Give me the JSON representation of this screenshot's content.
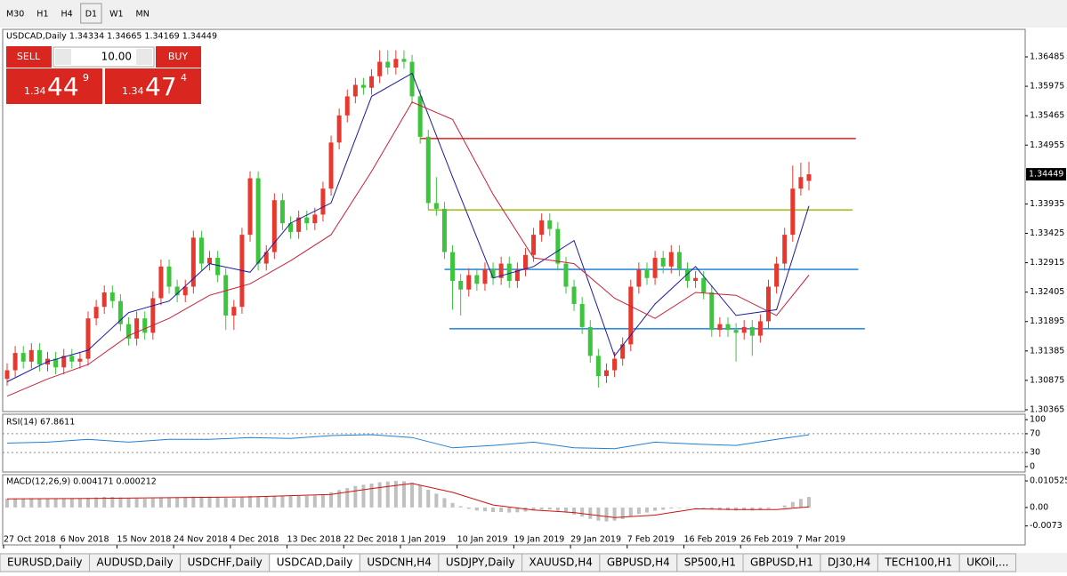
{
  "toolbar": {
    "timeframes": [
      "M30",
      "H1",
      "H4",
      "D1",
      "W1",
      "MN"
    ],
    "active": 3
  },
  "trade_panel": {
    "sell": "SELL",
    "buy": "BUY",
    "volume": "10.00",
    "bid": {
      "prefix": "1.34",
      "big": "44",
      "sup": "9"
    },
    "ask": {
      "prefix": "1.34",
      "big": "47",
      "sup": "4"
    }
  },
  "chart_data": [
    {
      "type": "candlestick",
      "title": "USDCAD,Daily 1.34334 1.34665 1.34169 1.34449",
      "up_color": "#e8382d",
      "down_color": "#3cc43c",
      "xlim": [
        -0.55,
        125.7
      ],
      "ylim": [
        1.30334,
        1.36963
      ],
      "yticks": [
        1.36485,
        1.35975,
        1.35465,
        1.34955,
        1.33935,
        1.33425,
        1.32915,
        1.32405,
        1.31895,
        1.31385,
        1.30875,
        1.30365
      ],
      "current_price": 1.34449,
      "xticks": [
        {
          "value": 0,
          "label": "27 Oct 2018"
        },
        {
          "value": 7,
          "label": "6 Nov 2018"
        },
        {
          "value": 14,
          "label": "15 Nov 2018"
        },
        {
          "value": 21,
          "label": "24 Nov 2018"
        },
        {
          "value": 28,
          "label": "4 Dec 2018"
        },
        {
          "value": 35,
          "label": "13 Dec 2018"
        },
        {
          "value": 42,
          "label": "22 Dec 2018"
        },
        {
          "value": 49,
          "label": "1 Jan 2019"
        },
        {
          "value": 56,
          "label": "10 Jan 2019"
        },
        {
          "value": 63,
          "label": "19 Jan 2019"
        },
        {
          "value": 70,
          "label": "29 Jan 2019"
        },
        {
          "value": 77,
          "label": "7 Feb 2019"
        },
        {
          "value": 84,
          "label": "16 Feb 2019"
        },
        {
          "value": 91,
          "label": "26 Feb 2019"
        },
        {
          "value": 98,
          "label": "7 Mar 2019"
        }
      ],
      "candles": [
        [
          1.309,
          1.3117,
          1.3078,
          1.3105
        ],
        [
          1.3105,
          1.3147,
          1.3093,
          1.3135
        ],
        [
          1.3135,
          1.3147,
          1.3108,
          1.312
        ],
        [
          1.312,
          1.3152,
          1.3108,
          1.314
        ],
        [
          1.314,
          1.3152,
          1.3103,
          1.3115
        ],
        [
          1.3115,
          1.3137,
          1.3103,
          1.3125
        ],
        [
          1.3125,
          1.3137,
          1.3098,
          1.311
        ],
        [
          1.311,
          1.3142,
          1.3098,
          1.313
        ],
        [
          1.313,
          1.3142,
          1.3108,
          1.312
        ],
        [
          1.312,
          1.3137,
          1.3108,
          1.3125
        ],
        [
          1.3125,
          1.3207,
          1.3113,
          1.3195
        ],
        [
          1.3195,
          1.3227,
          1.3183,
          1.3215
        ],
        [
          1.3215,
          1.3252,
          1.3203,
          1.324
        ],
        [
          1.324,
          1.3252,
          1.3213,
          1.3225
        ],
        [
          1.3225,
          1.3237,
          1.3173,
          1.3185
        ],
        [
          1.3185,
          1.3197,
          1.3148,
          1.316
        ],
        [
          1.316,
          1.3207,
          1.3148,
          1.3195
        ],
        [
          1.3195,
          1.3207,
          1.3158,
          1.317
        ],
        [
          1.317,
          1.3242,
          1.3158,
          1.323
        ],
        [
          1.323,
          1.3297,
          1.3218,
          1.3285
        ],
        [
          1.3285,
          1.3297,
          1.3238,
          1.325
        ],
        [
          1.325,
          1.3262,
          1.3223,
          1.3235
        ],
        [
          1.3235,
          1.3262,
          1.3223,
          1.325
        ],
        [
          1.325,
          1.3347,
          1.3238,
          1.3335
        ],
        [
          1.3335,
          1.3347,
          1.3278,
          1.329
        ],
        [
          1.329,
          1.3312,
          1.3278,
          1.33
        ],
        [
          1.33,
          1.3312,
          1.3258,
          1.327
        ],
        [
          1.327,
          1.3282,
          1.3175,
          1.32
        ],
        [
          1.32,
          1.3227,
          1.3175,
          1.3215
        ],
        [
          1.3215,
          1.3352,
          1.3203,
          1.334
        ],
        [
          1.334,
          1.345,
          1.3328,
          1.3438
        ],
        [
          1.3438,
          1.345,
          1.3278,
          1.329
        ],
        [
          1.329,
          1.3322,
          1.3278,
          1.331
        ],
        [
          1.331,
          1.3412,
          1.3298,
          1.34
        ],
        [
          1.34,
          1.3412,
          1.3348,
          1.336
        ],
        [
          1.336,
          1.3372,
          1.3333,
          1.3345
        ],
        [
          1.3345,
          1.3382,
          1.3333,
          1.337
        ],
        [
          1.337,
          1.3382,
          1.3348,
          1.336
        ],
        [
          1.336,
          1.3387,
          1.3348,
          1.3375
        ],
        [
          1.3375,
          1.3432,
          1.3363,
          1.342
        ],
        [
          1.342,
          1.3512,
          1.3408,
          1.35
        ],
        [
          1.35,
          1.3559,
          1.3488,
          1.3547
        ],
        [
          1.3547,
          1.3592,
          1.3535,
          1.358
        ],
        [
          1.358,
          1.3612,
          1.3568,
          1.36
        ],
        [
          1.36,
          1.3612,
          1.3583,
          1.3595
        ],
        [
          1.3595,
          1.3627,
          1.3583,
          1.3615
        ],
        [
          1.3615,
          1.366,
          1.3603,
          1.364
        ],
        [
          1.364,
          1.366,
          1.3618,
          1.363
        ],
        [
          1.363,
          1.366,
          1.3618,
          1.3645
        ],
        [
          1.3645,
          1.366,
          1.3628,
          1.364
        ],
        [
          1.364,
          1.3652,
          1.3568,
          1.358
        ],
        [
          1.358,
          1.3592,
          1.3498,
          1.351
        ],
        [
          1.351,
          1.3522,
          1.3383,
          1.3395
        ],
        [
          1.3395,
          1.344,
          1.3373,
          1.3385
        ],
        [
          1.3385,
          1.3397,
          1.3298,
          1.331
        ],
        [
          1.331,
          1.3322,
          1.321,
          1.326
        ],
        [
          1.326,
          1.3272,
          1.32,
          1.3245
        ],
        [
          1.3245,
          1.3282,
          1.3233,
          1.327
        ],
        [
          1.327,
          1.3282,
          1.3243,
          1.3255
        ],
        [
          1.3255,
          1.3292,
          1.3243,
          1.328
        ],
        [
          1.328,
          1.3292,
          1.3253,
          1.3265
        ],
        [
          1.3265,
          1.3302,
          1.3253,
          1.329
        ],
        [
          1.329,
          1.3302,
          1.3248,
          1.326
        ],
        [
          1.326,
          1.3292,
          1.3248,
          1.328
        ],
        [
          1.328,
          1.3317,
          1.3268,
          1.3305
        ],
        [
          1.3305,
          1.3352,
          1.3293,
          1.334
        ],
        [
          1.334,
          1.3377,
          1.3328,
          1.3365
        ],
        [
          1.3365,
          1.3377,
          1.3338,
          1.335
        ],
        [
          1.335,
          1.3362,
          1.3278,
          1.329
        ],
        [
          1.329,
          1.3302,
          1.3238,
          1.325
        ],
        [
          1.325,
          1.3262,
          1.3208,
          1.322
        ],
        [
          1.322,
          1.3232,
          1.3168,
          1.318
        ],
        [
          1.318,
          1.3192,
          1.3118,
          1.313
        ],
        [
          1.313,
          1.3142,
          1.3075,
          1.3095
        ],
        [
          1.3095,
          1.3117,
          1.3083,
          1.3105
        ],
        [
          1.3105,
          1.3137,
          1.3093,
          1.3125
        ],
        [
          1.3125,
          1.3162,
          1.3113,
          1.315
        ],
        [
          1.315,
          1.3262,
          1.3138,
          1.325
        ],
        [
          1.325,
          1.3292,
          1.3238,
          1.328
        ],
        [
          1.328,
          1.3292,
          1.3253,
          1.3265
        ],
        [
          1.3265,
          1.3312,
          1.3253,
          1.33
        ],
        [
          1.33,
          1.3312,
          1.3273,
          1.3285
        ],
        [
          1.3285,
          1.3322,
          1.3273,
          1.331
        ],
        [
          1.331,
          1.3322,
          1.3268,
          1.328
        ],
        [
          1.328,
          1.3292,
          1.3248,
          1.326
        ],
        [
          1.326,
          1.3277,
          1.3248,
          1.3265
        ],
        [
          1.3265,
          1.3277,
          1.3228,
          1.324
        ],
        [
          1.324,
          1.3252,
          1.3163,
          1.3175
        ],
        [
          1.3175,
          1.3197,
          1.3163,
          1.3185
        ],
        [
          1.3185,
          1.3197,
          1.3163,
          1.3175
        ],
        [
          1.3175,
          1.3187,
          1.312,
          1.317
        ],
        [
          1.317,
          1.3192,
          1.3158,
          1.318
        ],
        [
          1.318,
          1.3192,
          1.313,
          1.3165
        ],
        [
          1.3165,
          1.3202,
          1.3153,
          1.319
        ],
        [
          1.319,
          1.3262,
          1.3178,
          1.325
        ],
        [
          1.325,
          1.3302,
          1.3238,
          1.329
        ],
        [
          1.329,
          1.3352,
          1.3278,
          1.334
        ],
        [
          1.334,
          1.346,
          1.3328,
          1.342
        ],
        [
          1.342,
          1.3465,
          1.3408,
          1.344
        ],
        [
          1.34334,
          1.34665,
          1.34169,
          1.34449
        ]
      ],
      "ma_lines": [
        {
          "color": "#1a1aa0",
          "x": [
            0,
            5,
            10,
            15,
            20,
            25,
            30,
            35,
            40,
            45,
            50,
            55,
            60,
            65,
            70,
            75,
            80,
            85,
            90,
            95,
            99
          ],
          "values": [
            1.3085,
            1.312,
            1.314,
            1.3205,
            1.3225,
            1.329,
            1.3275,
            1.336,
            1.3395,
            1.358,
            1.362,
            1.344,
            1.3265,
            1.3285,
            1.333,
            1.313,
            1.322,
            1.3285,
            1.32,
            1.321,
            1.339
          ]
        },
        {
          "color": "#c8203a",
          "x": [
            0,
            5,
            10,
            15,
            20,
            25,
            30,
            35,
            40,
            45,
            50,
            55,
            60,
            65,
            70,
            75,
            80,
            85,
            90,
            95,
            99
          ],
          "values": [
            1.306,
            1.309,
            1.3115,
            1.3165,
            1.3195,
            1.3235,
            1.3255,
            1.3295,
            1.334,
            1.345,
            1.357,
            1.354,
            1.341,
            1.33,
            1.329,
            1.323,
            1.3195,
            1.324,
            1.3235,
            1.32,
            1.327
          ]
        }
      ],
      "levels": [
        {
          "value": 1.3507,
          "from": 51,
          "to": 104.8,
          "color": "#e8322d"
        },
        {
          "value": 1.3383,
          "from": 52,
          "to": 104.4,
          "color": "#a8c020"
        },
        {
          "value": 1.328,
          "from": 54,
          "to": 105.1,
          "color": "#2f8ee0"
        },
        {
          "value": 1.3177,
          "from": 54.6,
          "to": 105.9,
          "color": "#2f8ee0"
        }
      ]
    },
    {
      "type": "line",
      "title": "RSI(14) 67.8611",
      "color": "#1e7fd8",
      "ylim": [
        -11.5,
        111.5
      ],
      "yticks": [
        100,
        70,
        30,
        0
      ],
      "x": [
        0,
        5,
        10,
        15,
        20,
        25,
        30,
        35,
        40,
        45,
        50,
        55,
        60,
        65,
        70,
        75,
        80,
        85,
        90,
        95,
        99
      ],
      "values": [
        50,
        52,
        58,
        52,
        58,
        58,
        62,
        60,
        66,
        68,
        62,
        40,
        45,
        52,
        40,
        38,
        52,
        48,
        45,
        58,
        67.8611
      ]
    },
    {
      "type": "macd",
      "title": "MACD(12,26,9) 0.004171 0.000212",
      "bar_color": "#c0c0c0",
      "ylim": [
        -0.0148,
        0.013
      ],
      "yticks": [
        0.010525,
        {
          "value": 0,
          "label": "0.00"
        },
        -0.0073
      ],
      "values": [
        0.0035,
        0.0036,
        0.0036,
        0.0037,
        0.0036,
        0.0036,
        0.0035,
        0.0035,
        0.0035,
        0.0035,
        0.0038,
        0.004,
        0.0042,
        0.0042,
        0.004,
        0.0037,
        0.0036,
        0.0035,
        0.0036,
        0.0039,
        0.004,
        0.004,
        0.004,
        0.0043,
        0.0043,
        0.0043,
        0.0042,
        0.0038,
        0.0036,
        0.004,
        0.0046,
        0.0044,
        0.0043,
        0.0046,
        0.0046,
        0.0045,
        0.0046,
        0.0046,
        0.0047,
        0.0052,
        0.006,
        0.0069,
        0.0077,
        0.0085,
        0.009,
        0.0095,
        0.01,
        0.0103,
        0.0105,
        0.0104,
        0.0098,
        0.0088,
        0.007,
        0.0055,
        0.0037,
        0.0018,
        0.0005,
        -0.0005,
        -0.0012,
        -0.0015,
        -0.0018,
        -0.0018,
        -0.002,
        -0.0019,
        -0.0016,
        -0.0012,
        -0.0008,
        -0.0008,
        -0.0013,
        -0.002,
        -0.0028,
        -0.0036,
        -0.0045,
        -0.0052,
        -0.0055,
        -0.0052,
        -0.0046,
        -0.0035,
        -0.0026,
        -0.002,
        -0.0013,
        -0.0009,
        -0.0004,
        -0.0002,
        -0.0002,
        -0.0001,
        -0.0003,
        -0.0008,
        -0.001,
        -0.0011,
        -0.0012,
        -0.0011,
        -0.0012,
        -0.001,
        -0.0005,
        0.0,
        0.0008,
        0.0022,
        0.0034,
        0.004171
      ],
      "signal": {
        "color": "#d01010",
        "x": [
          0,
          10,
          20,
          30,
          40,
          45,
          50,
          55,
          60,
          65,
          70,
          75,
          80,
          85,
          90,
          95,
          99
        ],
        "values": [
          0.0034,
          0.0036,
          0.0039,
          0.0042,
          0.0052,
          0.0075,
          0.0095,
          0.006,
          0.001,
          -0.001,
          -0.002,
          -0.004,
          -0.003,
          -0.0005,
          -0.0008,
          -0.0008,
          0.000212
        ]
      }
    }
  ],
  "tabs": {
    "items": [
      "EURUSD,Daily",
      "AUDUSD,Daily",
      "USDCHF,Daily",
      "USDCAD,Daily",
      "USDCNH,H4",
      "USDJPY,Daily",
      "XAUUSD,H4",
      "GBPUSD,H4",
      "SP500,H1",
      "GBPUSD,H1",
      "DJ30,H4",
      "TECH100,H1",
      "UKOil,..."
    ],
    "active": 3
  }
}
